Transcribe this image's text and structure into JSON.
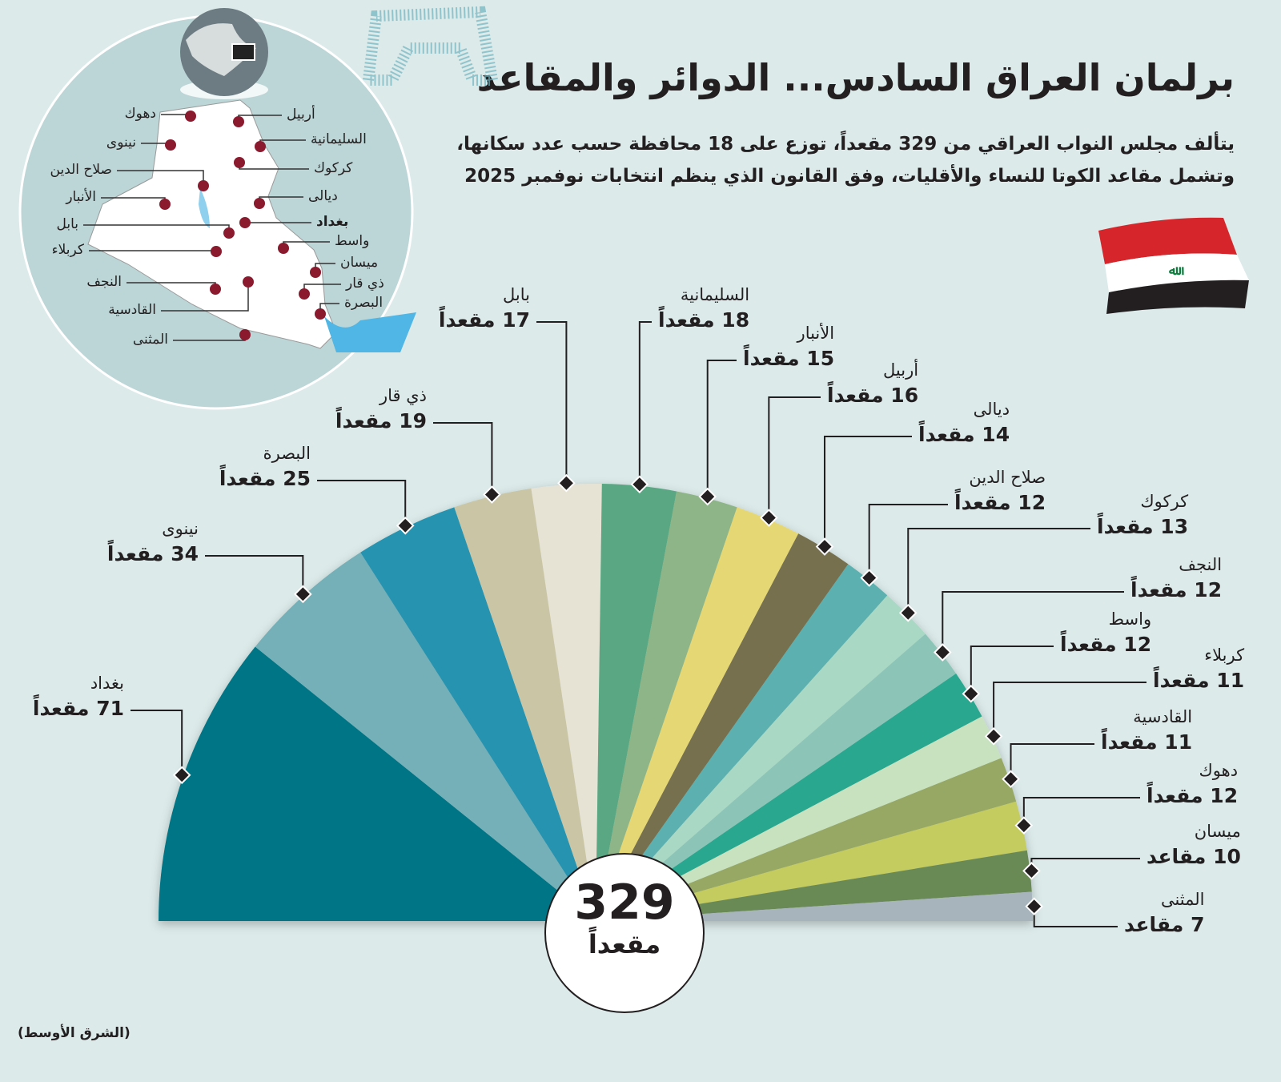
{
  "title": "برلمان العراق السادس... الدوائر  والمقاعد",
  "subtitle": "يتألف مجلس النواب العراقي من 329 مقعداً، توزع على 18 محافظة حسب عدد سكانها، وتشمل مقاعد الكوتا للنساء والأقليات، وفق القانون الذي ينظم انتخابات نوفمبر 2025",
  "source": "(الشرق الأوسط)",
  "total": {
    "value": "329",
    "unit": "مقعداً"
  },
  "colors": {
    "background": "#dceaea",
    "map_circle": "#bcd5d6",
    "map_land": "#ffffff",
    "map_dot": "#8b1a2e",
    "water": "#4fb6e6"
  },
  "map": {
    "labels": [
      "دهوك",
      "أربيل",
      "نينوى",
      "السليمانية",
      "كركوك",
      "صلاح الدين",
      "الأنبار",
      "ديالى",
      "بغداد",
      "بابل",
      "واسط",
      "كربلاء",
      "ميسان",
      "النجف",
      "ذي قار",
      "البصرة",
      "القادسية",
      "المثنى"
    ]
  },
  "chart_data": {
    "type": "pie",
    "variant": "semicircle",
    "title": "",
    "total": 329,
    "categories": [
      "بغداد",
      "نينوى",
      "البصرة",
      "ذي قار",
      "بابل",
      "السليمانية",
      "الأنبار",
      "أربيل",
      "ديالى",
      "صلاح الدين",
      "كركوك",
      "النجف",
      "واسط",
      "كربلاء",
      "القادسية",
      "دهوك",
      "ميسان",
      "المثنى"
    ],
    "values": [
      71,
      34,
      25,
      19,
      17,
      18,
      15,
      16,
      14,
      12,
      13,
      12,
      12,
      11,
      11,
      12,
      10,
      7
    ],
    "value_labels": [
      "71 مقعداً",
      "34 مقعداً",
      "25 مقعداً",
      "19 مقعداً",
      "17 مقعداً",
      "18 مقعداً",
      "15 مقعداً",
      "16 مقعداً",
      "14 مقعداً",
      "12 مقعداً",
      "13 مقعداً",
      "12 مقعداً",
      "12 مقعداً",
      "11 مقعداً",
      "11 مقعداً",
      "12 مقعداً",
      "10 مقاعد",
      "7 مقاعد"
    ],
    "colors": [
      "#007585",
      "#74b0b8",
      "#2593b0",
      "#c9c5a5",
      "#e6e3d5",
      "#5aa883",
      "#8eb587",
      "#e6d775",
      "#76704f",
      "#5bb0b0",
      "#a9d9c4",
      "#8cc5b8",
      "#29a78f",
      "#c8e2c0",
      "#97a865",
      "#c4cb5f",
      "#6a8a55",
      "#a7b4bc"
    ]
  }
}
